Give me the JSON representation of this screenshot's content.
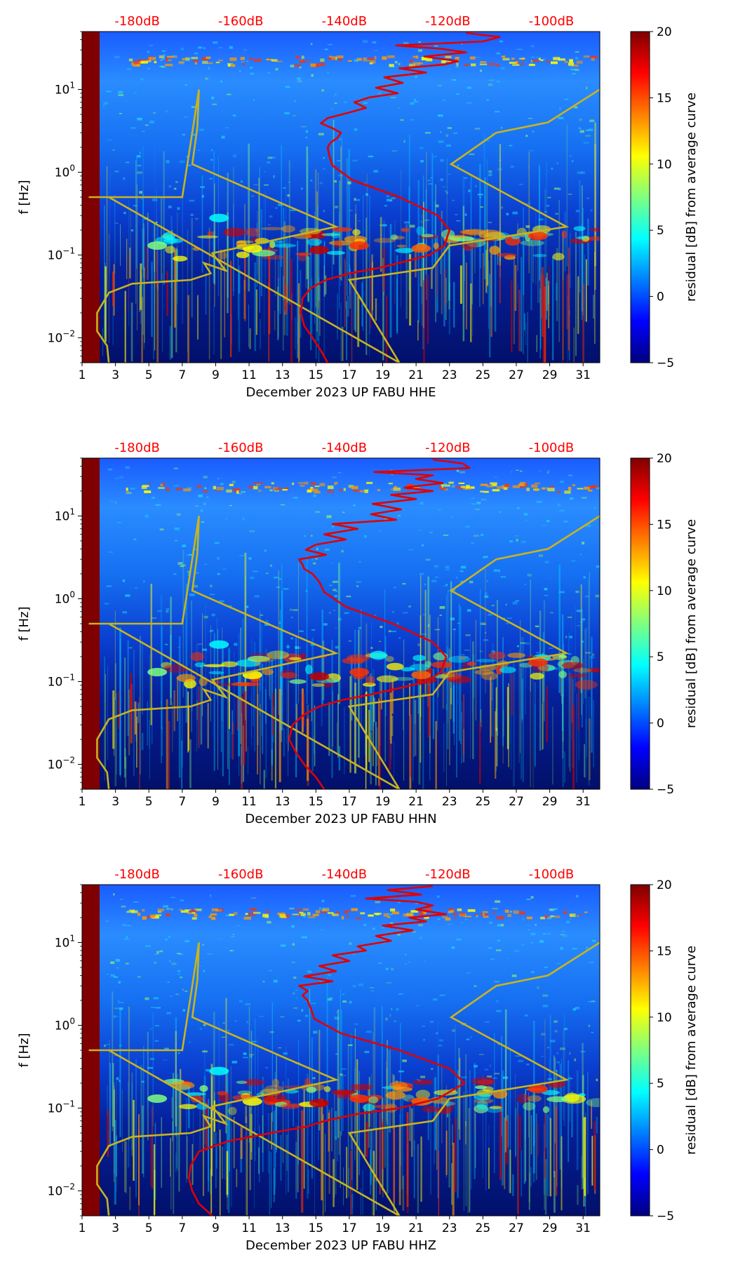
{
  "colors": {
    "red_curve": "#e00000",
    "yellow_curve": "#c8b41e",
    "db_label": "#ff0000",
    "axis": "#000000",
    "colormap": [
      "#00007f",
      "#0000ff",
      "#007fff",
      "#00ffff",
      "#7fff7f",
      "#ffff00",
      "#ff7f00",
      "#ff0000",
      "#7f0000"
    ]
  },
  "chart_data": [
    {
      "type": "heatmap",
      "title": "",
      "xlabel": "December 2023 UP FABU  HHE",
      "ylabel": "f [Hz]",
      "x_range": [
        1,
        32
      ],
      "x_ticks": [
        "1",
        "3",
        "5",
        "7",
        "9",
        "11",
        "13",
        "15",
        "17",
        "19",
        "21",
        "23",
        "25",
        "27",
        "29",
        "31"
      ],
      "y_scale": "log",
      "y_range": [
        0.005,
        50
      ],
      "y_ticks": [
        {
          "value": 0.01,
          "base": "10",
          "exp": "−2"
        },
        {
          "value": 0.1,
          "base": "10",
          "exp": "−1"
        },
        {
          "value": 1,
          "base": "10",
          "exp": "0"
        },
        {
          "value": 10,
          "base": "10",
          "exp": "1"
        }
      ],
      "db_axis_labels": [
        {
          "x": 4.3,
          "label": "-180dB"
        },
        {
          "x": 10.5,
          "label": "-160dB"
        },
        {
          "x": 16.7,
          "label": "-140dB"
        },
        {
          "x": 22.9,
          "label": "-120dB"
        },
        {
          "x": 29.1,
          "label": "-100dB"
        }
      ],
      "colorbar": {
        "label": "residual [dB] from average curve",
        "range": [
          -5,
          20
        ],
        "ticks": [
          "20",
          "15",
          "10",
          "5",
          "0",
          "−5"
        ]
      },
      "red_curve": {
        "x": [
          15.7,
          15.3,
          14.8,
          14.3,
          14.1,
          14.2,
          14.7,
          15.6,
          17.0,
          18.8,
          20.5,
          21.8,
          22.7,
          23.0,
          22.3,
          20.0,
          17.2,
          16.0,
          15.8,
          15.7,
          15.9,
          16.3,
          16.5,
          16.0,
          15.3,
          15.7,
          16.9,
          18.0,
          17.3,
          18.2,
          19.9,
          18.6,
          20.2,
          19.1,
          21.6,
          20.0,
          22.7,
          23.5,
          21.5,
          24.0,
          22.5,
          19.8,
          25.0,
          26.0,
          24.0
        ],
        "y": [
          0.005,
          0.007,
          0.01,
          0.014,
          0.02,
          0.03,
          0.04,
          0.05,
          0.06,
          0.07,
          0.085,
          0.1,
          0.13,
          0.2,
          0.3,
          0.5,
          0.8,
          1.2,
          1.6,
          2.0,
          2.3,
          2.6,
          3.0,
          3.4,
          3.9,
          4.5,
          5.2,
          6.0,
          7.0,
          8.0,
          9.0,
          10.5,
          12,
          14,
          16,
          18,
          20,
          22,
          25,
          28,
          31,
          34,
          38,
          43,
          48
        ]
      },
      "yellow_curve": {
        "x": [
          2.6,
          2.5,
          1.9,
          1.9,
          2.6,
          4.0,
          7.5,
          8.7,
          8.3,
          9.6,
          8.8,
          16.2,
          13.2,
          7.6,
          7.9,
          8.0,
          7.0,
          1.5,
          1.4,
          2.0,
          2.6,
          20.0,
          17.0,
          22.0,
          23.0,
          30.0,
          23.1,
          25.8,
          28.9,
          32.0
        ],
        "y": [
          0.005,
          0.008,
          0.012,
          0.02,
          0.035,
          0.045,
          0.05,
          0.06,
          0.08,
          0.065,
          0.105,
          0.22,
          0.4,
          1.25,
          3.5,
          10.0,
          0.5,
          0.5,
          0.5,
          0.5,
          0.5,
          0.005,
          0.05,
          0.07,
          0.13,
          0.22,
          1.25,
          3.0,
          4.0,
          10.0
        ]
      }
    },
    {
      "type": "heatmap",
      "title": "",
      "xlabel": "December 2023 UP FABU  HHN",
      "ylabel": "f [Hz]",
      "x_range": [
        1,
        32
      ],
      "x_ticks": [
        "1",
        "3",
        "5",
        "7",
        "9",
        "11",
        "13",
        "15",
        "17",
        "19",
        "21",
        "23",
        "25",
        "27",
        "29",
        "31"
      ],
      "y_scale": "log",
      "y_range": [
        0.005,
        50
      ],
      "y_ticks": [
        {
          "value": 0.01,
          "base": "10",
          "exp": "−2"
        },
        {
          "value": 0.1,
          "base": "10",
          "exp": "−1"
        },
        {
          "value": 1,
          "base": "10",
          "exp": "0"
        },
        {
          "value": 10,
          "base": "10",
          "exp": "1"
        }
      ],
      "db_axis_labels": [
        {
          "x": 4.3,
          "label": "-180dB"
        },
        {
          "x": 10.5,
          "label": "-160dB"
        },
        {
          "x": 16.7,
          "label": "-140dB"
        },
        {
          "x": 22.9,
          "label": "-120dB"
        },
        {
          "x": 29.1,
          "label": "-100dB"
        }
      ],
      "colorbar": {
        "label": "residual [dB] from average curve",
        "range": [
          -5,
          20
        ],
        "ticks": [
          "20",
          "15",
          "10",
          "5",
          "0",
          "−5"
        ]
      },
      "red_curve": {
        "x": [
          15.5,
          15.0,
          14.3,
          13.8,
          13.4,
          13.6,
          14.3,
          15.2,
          16.6,
          18.3,
          20.2,
          21.6,
          22.5,
          22.8,
          22.0,
          19.6,
          16.8,
          15.5,
          15.2,
          14.8,
          14.3,
          14.2,
          14.0,
          15.6,
          14.4,
          15.0,
          16.8,
          15.5,
          17.5,
          16.0,
          19.8,
          18.3,
          20.1,
          18.4,
          21.0,
          19.5,
          22.0,
          20.3,
          22.6,
          21.0,
          22.0,
          18.5,
          24.2,
          23.8,
          22.0
        ],
        "y": [
          0.005,
          0.007,
          0.01,
          0.014,
          0.02,
          0.03,
          0.04,
          0.05,
          0.06,
          0.07,
          0.085,
          0.1,
          0.13,
          0.2,
          0.3,
          0.5,
          0.8,
          1.2,
          1.6,
          2.0,
          2.3,
          2.6,
          3.0,
          3.4,
          3.9,
          4.5,
          5.2,
          6.0,
          7.0,
          8.0,
          9.0,
          10.5,
          12,
          14,
          16,
          18,
          20,
          22,
          25,
          28,
          31,
          34,
          38,
          43,
          48
        ]
      },
      "yellow_curve": {
        "x": [
          2.6,
          2.5,
          1.9,
          1.9,
          2.6,
          4.0,
          7.5,
          8.7,
          8.3,
          9.6,
          8.8,
          16.2,
          13.2,
          7.6,
          7.9,
          8.0,
          7.0,
          1.5,
          1.4,
          2.0,
          2.6,
          20.0,
          17.0,
          22.0,
          23.0,
          30.0,
          23.1,
          25.8,
          28.9,
          32.0
        ],
        "y": [
          0.005,
          0.008,
          0.012,
          0.02,
          0.035,
          0.045,
          0.05,
          0.06,
          0.08,
          0.065,
          0.105,
          0.22,
          0.4,
          1.25,
          3.5,
          10.0,
          0.5,
          0.5,
          0.5,
          0.5,
          0.5,
          0.005,
          0.05,
          0.07,
          0.13,
          0.22,
          1.25,
          3.0,
          4.0,
          10.0
        ]
      }
    },
    {
      "type": "heatmap",
      "title": "",
      "xlabel": "December 2023 UP FABU  HHZ",
      "ylabel": "f [Hz]",
      "x_range": [
        1,
        32
      ],
      "x_ticks": [
        "1",
        "3",
        "5",
        "7",
        "9",
        "11",
        "13",
        "15",
        "17",
        "19",
        "21",
        "23",
        "25",
        "27",
        "29",
        "31"
      ],
      "y_scale": "log",
      "y_range": [
        0.005,
        50
      ],
      "y_ticks": [
        {
          "value": 0.01,
          "base": "10",
          "exp": "−2"
        },
        {
          "value": 0.1,
          "base": "10",
          "exp": "−1"
        },
        {
          "value": 1,
          "base": "10",
          "exp": "0"
        },
        {
          "value": 10,
          "base": "10",
          "exp": "1"
        }
      ],
      "db_axis_labels": [
        {
          "x": 4.3,
          "label": "-180dB"
        },
        {
          "x": 10.5,
          "label": "-160dB"
        },
        {
          "x": 16.7,
          "label": "-140dB"
        },
        {
          "x": 22.9,
          "label": "-120dB"
        },
        {
          "x": 29.1,
          "label": "-100dB"
        }
      ],
      "colorbar": {
        "label": "residual [dB] from average curve",
        "range": [
          -5,
          20
        ],
        "ticks": [
          "20",
          "15",
          "10",
          "5",
          "0",
          "−5"
        ]
      },
      "red_curve": {
        "x": [
          8.8,
          8.0,
          7.6,
          7.4,
          7.5,
          8.0,
          9.8,
          12.3,
          14.5,
          15.5,
          17.5,
          20.0,
          22.3,
          23.9,
          23.0,
          20.0,
          16.5,
          14.9,
          14.7,
          14.5,
          14.2,
          14.5,
          14.0,
          16.0,
          14.3,
          16.2,
          15.2,
          17.0,
          16.0,
          18.0,
          17.5,
          19.5,
          18.6,
          20.8,
          19.0,
          21.6,
          20.6,
          22.8,
          21.0,
          22.0,
          21.0,
          18.0,
          21.3,
          19.3,
          22.0
        ],
        "y": [
          0.005,
          0.007,
          0.01,
          0.014,
          0.02,
          0.03,
          0.04,
          0.05,
          0.06,
          0.07,
          0.085,
          0.1,
          0.13,
          0.2,
          0.3,
          0.5,
          0.8,
          1.2,
          1.6,
          2.0,
          2.3,
          2.6,
          3.0,
          3.4,
          3.9,
          4.5,
          5.2,
          6.0,
          7.0,
          8.0,
          9.0,
          10.5,
          12,
          14,
          16,
          18,
          20,
          22,
          25,
          28,
          31,
          34,
          38,
          43,
          48
        ]
      },
      "yellow_curve": {
        "x": [
          2.6,
          2.5,
          1.9,
          1.9,
          2.6,
          4.0,
          7.5,
          8.7,
          8.3,
          9.6,
          8.8,
          16.2,
          13.2,
          7.6,
          7.9,
          8.0,
          7.0,
          1.5,
          1.4,
          2.0,
          2.6,
          20.0,
          17.0,
          22.0,
          23.0,
          30.0,
          23.1,
          25.8,
          28.9,
          32.0
        ],
        "y": [
          0.005,
          0.008,
          0.012,
          0.02,
          0.035,
          0.045,
          0.05,
          0.06,
          0.08,
          0.065,
          0.105,
          0.22,
          0.4,
          1.25,
          3.5,
          10.0,
          0.5,
          0.5,
          0.5,
          0.5,
          0.5,
          0.005,
          0.05,
          0.07,
          0.13,
          0.22,
          1.25,
          3.0,
          4.0,
          10.0
        ]
      }
    }
  ]
}
